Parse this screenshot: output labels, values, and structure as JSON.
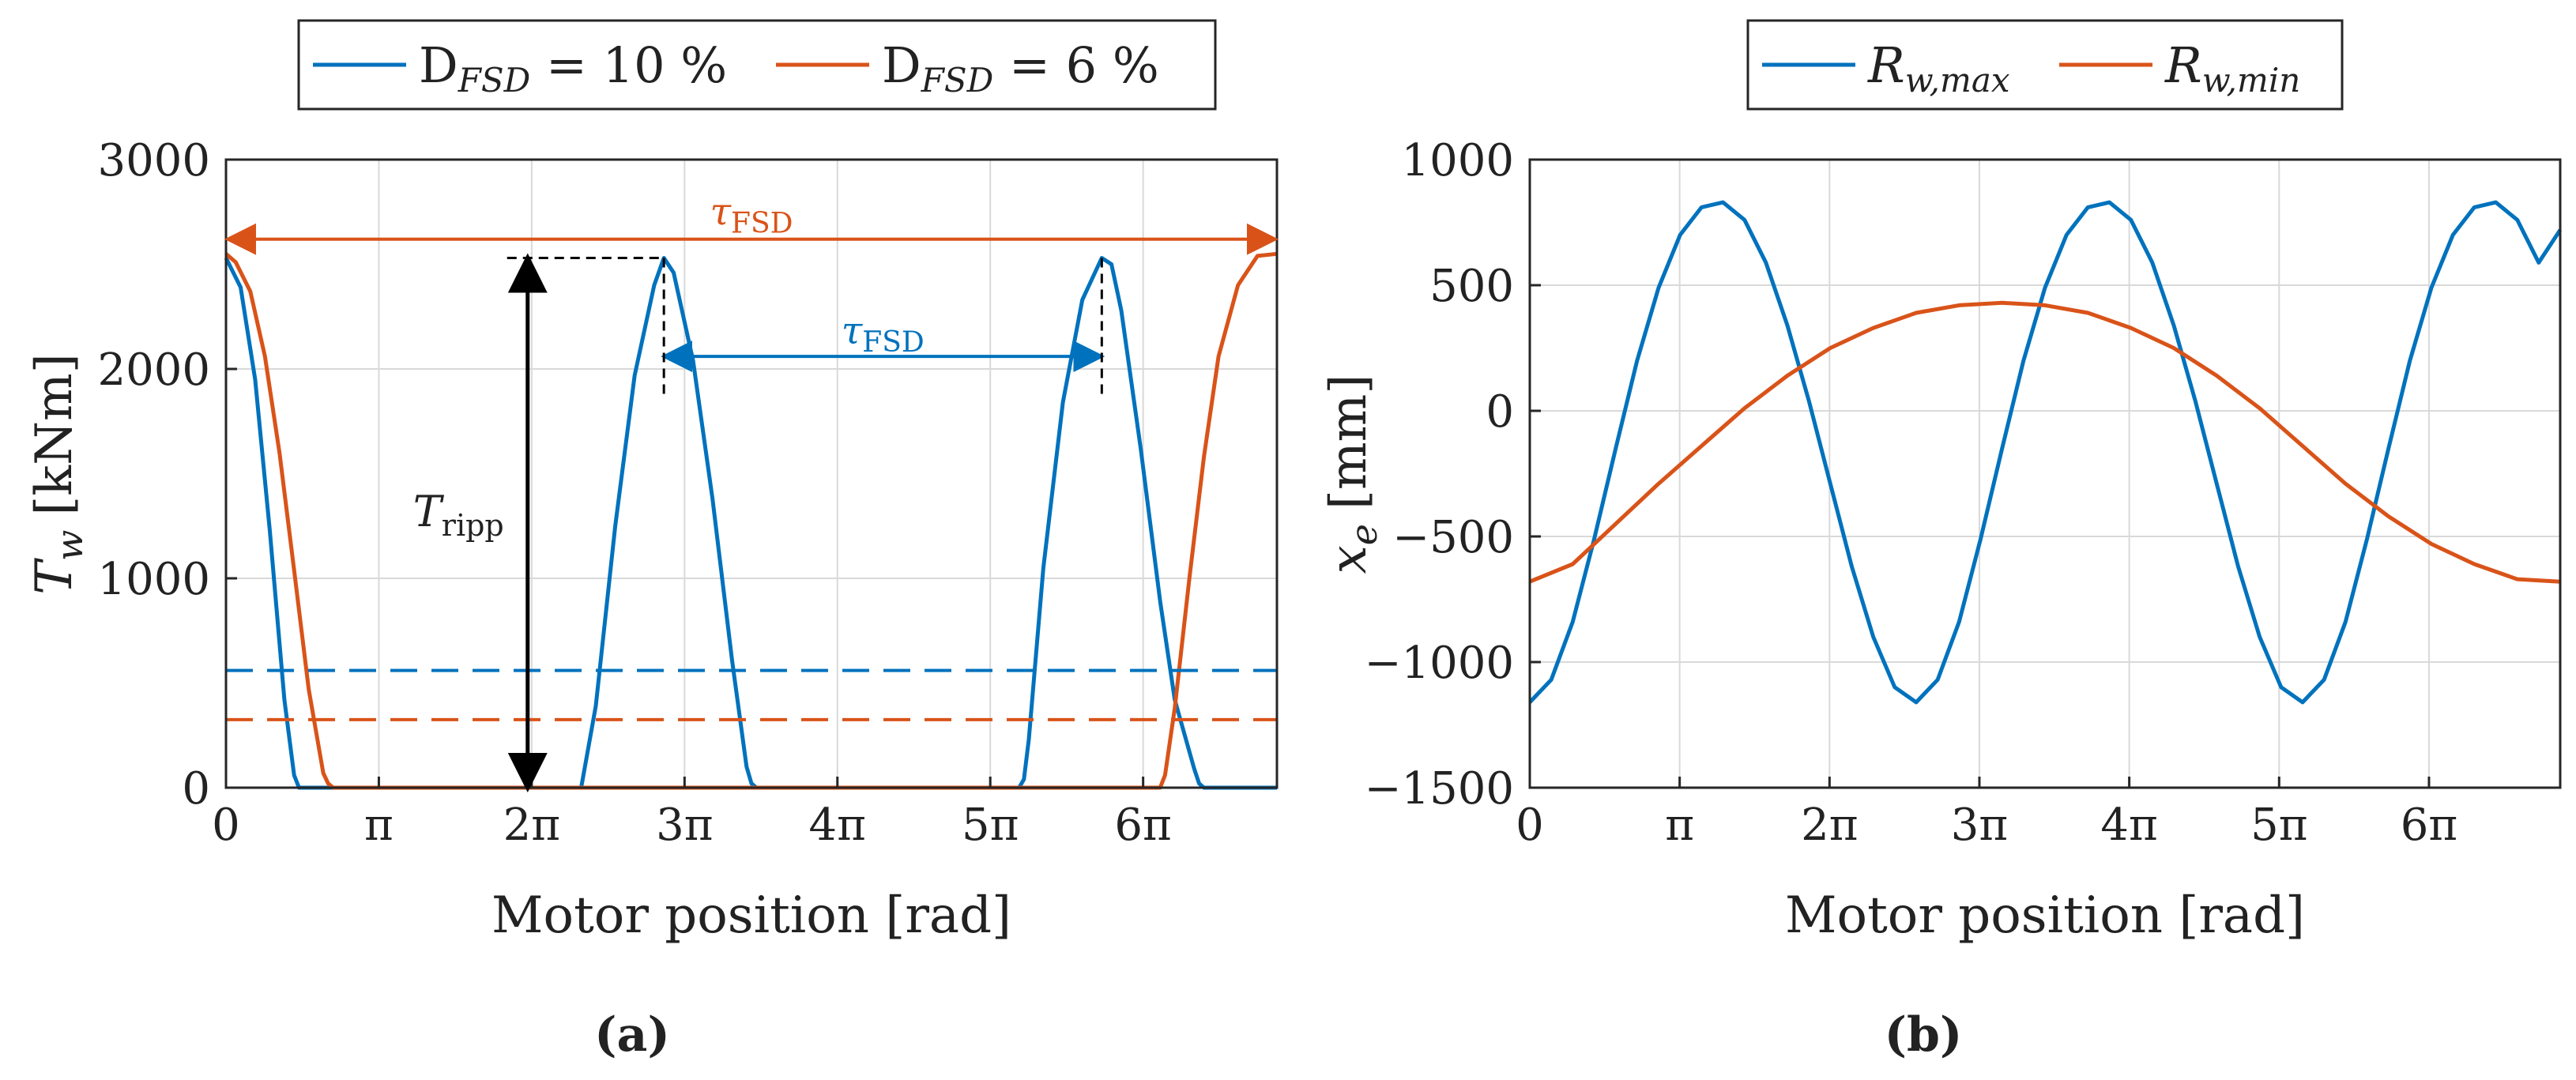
{
  "chart_data": [
    {
      "panel": "(a)",
      "type": "line",
      "xlabel": "Motor position [rad]",
      "ylabel": "T",
      "ylabel_sub": "w",
      "ylabel_unit": "[kNm]",
      "xlim": [
        0,
        21.6
      ],
      "ylim": [
        0,
        3000
      ],
      "xticks": [
        0,
        3.1416,
        6.2832,
        9.4248,
        12.5664,
        15.708,
        18.8496
      ],
      "xtick_labels": [
        "0",
        "π",
        "2π",
        "3π",
        "4π",
        "5π",
        "6π"
      ],
      "yticks": [
        0,
        1000,
        2000,
        3000
      ],
      "ytick_labels": [
        "0",
        "1000",
        "2000",
        "3000"
      ],
      "grid": true,
      "legend_position": "top",
      "series": [
        {
          "name": "D",
          "name_sub": "FSD",
          "name_rest": " = 10 %",
          "color": "#0072BD",
          "x": [
            0,
            0.3,
            0.6,
            0.9,
            1.2,
            1.4,
            1.5,
            1.6,
            7.3,
            7.6,
            8.0,
            8.4,
            8.8,
            9.0,
            9.2,
            9.6,
            10.0,
            10.4,
            10.7,
            10.8,
            10.9,
            16.3,
            16.4,
            16.5,
            16.8,
            17.2,
            17.6,
            18.0,
            18.2,
            18.4,
            18.8,
            19.2,
            19.5,
            19.9,
            20.0,
            20.1,
            21.6
          ],
          "y": [
            2530,
            2390,
            1950,
            1230,
            420,
            60,
            0,
            0,
            0,
            390,
            1250,
            1970,
            2400,
            2530,
            2460,
            2040,
            1380,
            610,
            100,
            20,
            0,
            0,
            40,
            230,
            1050,
            1840,
            2330,
            2530,
            2500,
            2280,
            1620,
            890,
            420,
            90,
            20,
            0,
            0
          ]
        },
        {
          "name": "D",
          "name_sub": "FSD",
          "name_rest": " = 6 %",
          "color": "#D95319",
          "x": [
            0,
            0.2,
            0.5,
            0.8,
            1.1,
            1.4,
            1.7,
            2.0,
            2.1,
            2.2,
            19.2,
            19.3,
            19.5,
            19.8,
            20.1,
            20.4,
            20.8,
            21.2,
            21.6
          ],
          "y": [
            2550,
            2510,
            2370,
            2060,
            1600,
            1040,
            470,
            70,
            20,
            0,
            0,
            60,
            380,
            1000,
            1580,
            2060,
            2400,
            2540,
            2550
          ]
        },
        {
          "name": "threshold-10",
          "color": "#0072BD",
          "dashed": true,
          "x": [
            0,
            21.6
          ],
          "y": [
            560,
            560
          ]
        },
        {
          "name": "threshold-6",
          "color": "#D95319",
          "dashed": true,
          "x": [
            0,
            21.6
          ],
          "y": [
            325,
            325
          ]
        }
      ],
      "annotations": {
        "tau_top": {
          "label": "τ",
          "label_sub": "FSD",
          "color": "#D95319",
          "x0": 0,
          "x1": 21.6,
          "y": 2620
        },
        "tau_mid": {
          "label": "τ",
          "label_sub": "FSD",
          "color": "#0072BD",
          "x0": 9.0,
          "x1": 18.0,
          "y": 2060
        },
        "ripple": {
          "label": "T",
          "label_sub": "ripp",
          "color": "#000000",
          "x": 6.2,
          "y0": 0,
          "y1": 2530
        }
      }
    },
    {
      "panel": "(b)",
      "type": "line",
      "xlabel": "Motor position [rad]",
      "ylabel": "x",
      "ylabel_sub": "e",
      "ylabel_unit": "[mm]",
      "xlim": [
        0,
        21.6
      ],
      "ylim": [
        -1500,
        1000
      ],
      "xticks": [
        0,
        3.1416,
        6.2832,
        9.4248,
        12.5664,
        15.708,
        18.8496
      ],
      "xtick_labels": [
        "0",
        "π",
        "2π",
        "3π",
        "4π",
        "5π",
        "6π"
      ],
      "yticks": [
        -1500,
        -1000,
        -500,
        0,
        500,
        1000
      ],
      "ytick_labels": [
        "−1500",
        "−1000",
        "−500",
        "0",
        "500",
        "1000"
      ],
      "grid": true,
      "legend_position": "top",
      "series": [
        {
          "name": "R",
          "name_sub": "w,max",
          "color": "#0072BD",
          "x": [
            0,
            0.45,
            0.9,
            1.35,
            1.8,
            2.25,
            2.7,
            3.15,
            3.6,
            4.05,
            4.5,
            4.95,
            5.4,
            5.85,
            6.3,
            6.75,
            7.2,
            7.65,
            8.1,
            8.55,
            9.0,
            9.45,
            9.9,
            10.35,
            10.8,
            11.25,
            11.7,
            12.15,
            12.6,
            13.05,
            13.5,
            13.95,
            14.4,
            14.85,
            15.3,
            15.75,
            16.2,
            16.65,
            17.1,
            17.55,
            18.0,
            18.45,
            18.9,
            19.35,
            19.8,
            20.25,
            20.7,
            21.15,
            21.6
          ],
          "y": [
            -1160,
            -1070,
            -840,
            -510,
            -150,
            200,
            490,
            700,
            810,
            830,
            760,
            590,
            340,
            40,
            -290,
            -620,
            -900,
            -1100,
            -1160,
            -1070,
            -840,
            -510,
            -150,
            200,
            490,
            700,
            810,
            830,
            760,
            590,
            340,
            40,
            -290,
            -620,
            -900,
            -1100,
            -1160,
            -1070,
            -840,
            -510,
            -150,
            200,
            490,
            700,
            810,
            830,
            760,
            590,
            720
          ]
        },
        {
          "name": "R",
          "name_sub": "w,min",
          "color": "#D95319",
          "x": [
            0,
            0.9,
            1.8,
            2.7,
            3.6,
            4.5,
            5.4,
            6.3,
            7.2,
            8.1,
            9.0,
            9.9,
            10.8,
            11.7,
            12.6,
            13.5,
            14.4,
            15.3,
            16.2,
            17.1,
            18.0,
            18.9,
            19.8,
            20.7,
            21.6
          ],
          "y": [
            -680,
            -610,
            -450,
            -290,
            -140,
            10,
            140,
            250,
            330,
            390,
            420,
            430,
            420,
            390,
            330,
            250,
            140,
            10,
            -140,
            -290,
            -420,
            -530,
            -610,
            -670,
            -680
          ]
        }
      ]
    }
  ]
}
